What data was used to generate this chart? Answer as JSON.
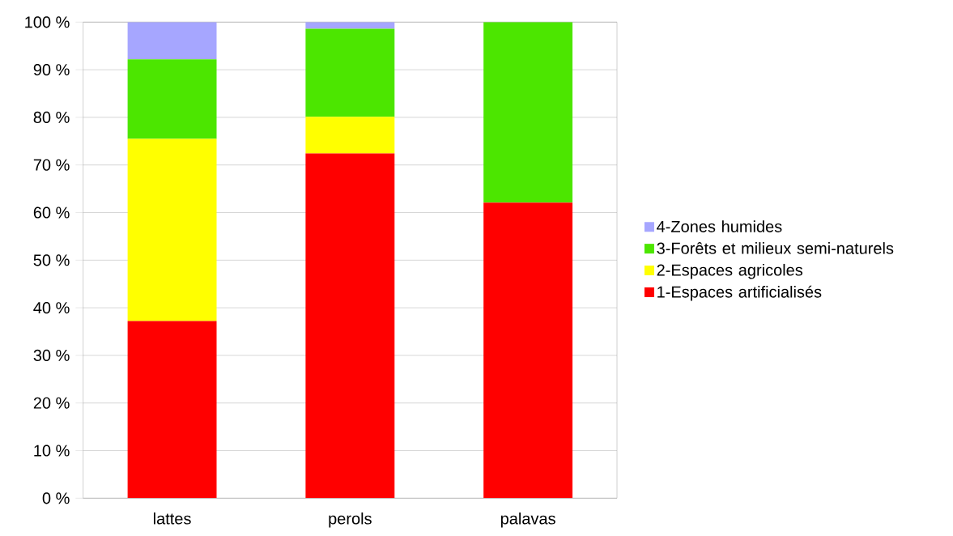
{
  "chart_data": {
    "type": "bar",
    "stacked": true,
    "categories": [
      "lattes",
      "perols",
      "palavas"
    ],
    "series": [
      {
        "name": "1-Espaces artificialisés",
        "color": "#ff0000",
        "values": [
          37.2,
          72.4,
          62.1
        ]
      },
      {
        "name": "2-Espaces agricoles",
        "color": "#ffff00",
        "values": [
          38.3,
          7.7,
          0
        ]
      },
      {
        "name": "3-Forêts et milieux semi-naturels",
        "color": "#4ce600",
        "values": [
          16.7,
          18.5,
          37.9
        ]
      },
      {
        "name": "4-Zones humides",
        "color": "#a6a6ff",
        "values": [
          7.8,
          1.4,
          0
        ]
      }
    ],
    "ylim": [
      0,
      100
    ],
    "yticks": [
      {
        "value": 0,
        "label": "0 %"
      },
      {
        "value": 10,
        "label": "10 %"
      },
      {
        "value": 20,
        "label": "20 %"
      },
      {
        "value": 30,
        "label": "30 %"
      },
      {
        "value": 40,
        "label": "40 %"
      },
      {
        "value": 50,
        "label": "50 %"
      },
      {
        "value": 60,
        "label": "60 %"
      },
      {
        "value": 70,
        "label": "70 %"
      },
      {
        "value": 80,
        "label": "80 %"
      },
      {
        "value": 90,
        "label": "90 %"
      },
      {
        "value": 100,
        "label": "100 %"
      }
    ],
    "grid": "y",
    "legend": "right"
  }
}
